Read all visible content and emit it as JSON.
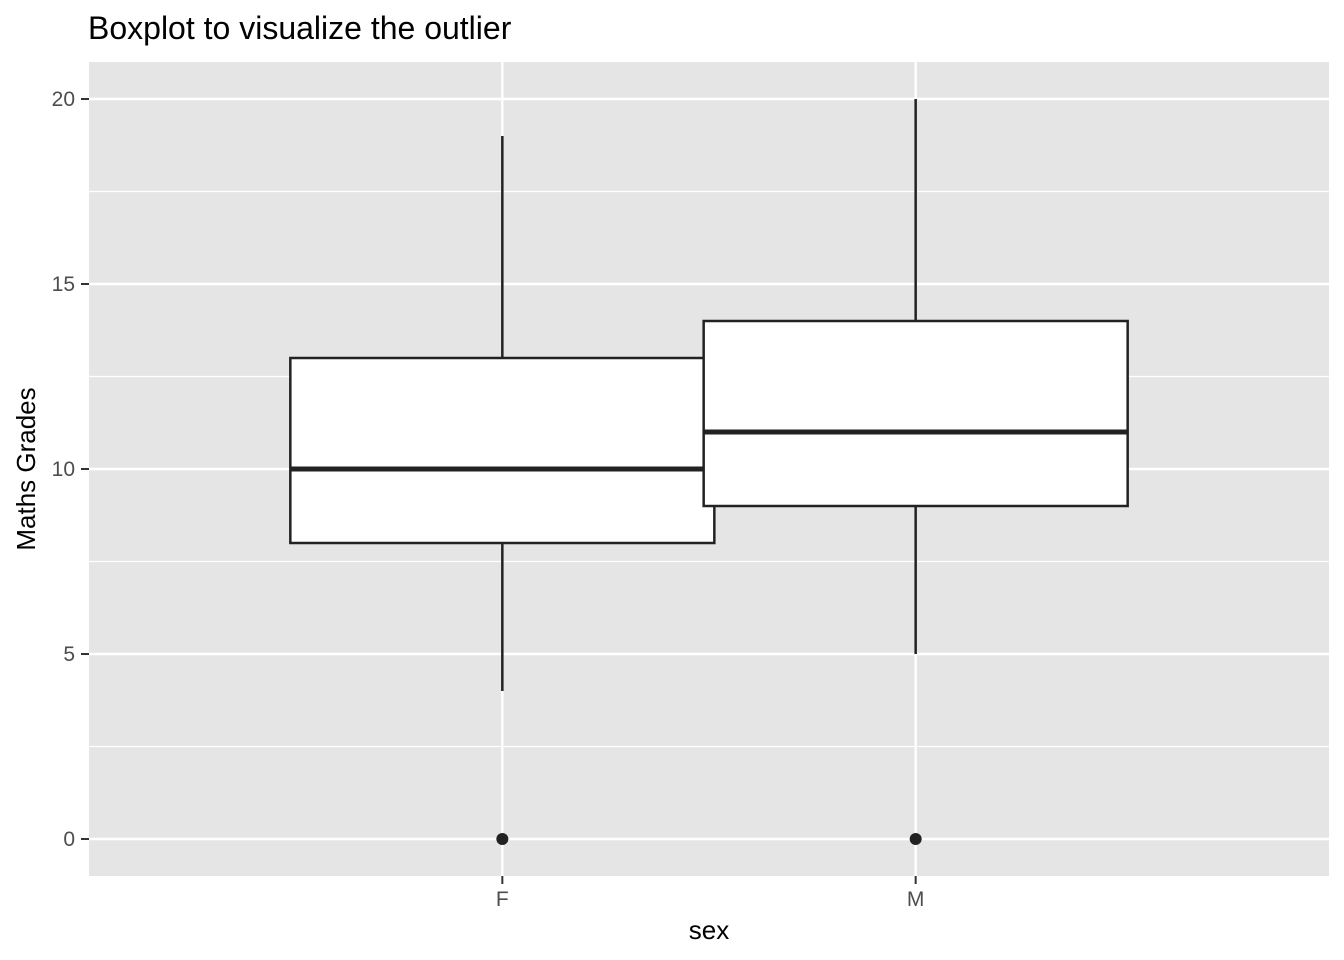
{
  "chart_data": {
    "type": "boxplot",
    "title": "Boxplot to visualize the outlier",
    "xlabel": "sex",
    "ylabel": "Maths Grades",
    "categories": [
      "F",
      "M"
    ],
    "boxes": [
      {
        "category": "F",
        "lower_whisker": 4,
        "q1": 8,
        "median": 10,
        "q3": 13,
        "upper_whisker": 19,
        "outliers": [
          0
        ]
      },
      {
        "category": "M",
        "lower_whisker": 5,
        "q1": 9,
        "median": 11,
        "q3": 14,
        "upper_whisker": 20,
        "outliers": [
          0
        ]
      }
    ],
    "ylim": [
      -1,
      21
    ],
    "yticks": [
      0,
      5,
      10,
      15,
      20
    ],
    "ytick_labels": [
      "0",
      "5",
      "10",
      "15",
      "20"
    ],
    "y_minor_ticks": [
      2.5,
      7.5,
      12.5,
      17.5
    ],
    "grid": true,
    "legend": "none",
    "colors": {
      "panel_background": "#e5e5e5",
      "grid": "#ffffff",
      "box_fill": "#ffffff",
      "box_stroke": "#222222",
      "tick_label": "#4d4d4d",
      "tick_mark": "#333333",
      "text": "#000000"
    }
  }
}
